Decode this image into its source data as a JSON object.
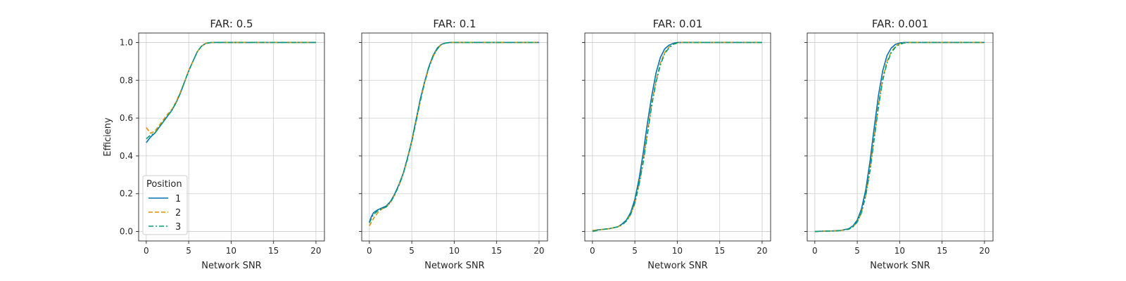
{
  "chart_data": [
    {
      "type": "line",
      "title": "FAR: 0.5",
      "xlabel": "Network SNR",
      "ylabel": "Efficieny",
      "xlim": [
        -0.9,
        21.0
      ],
      "ylim": [
        -0.05,
        1.05
      ],
      "xticks": [
        0,
        5,
        10,
        15,
        20
      ],
      "yticks": [
        0.0,
        0.2,
        0.4,
        0.6,
        0.8,
        1.0
      ],
      "ytick_labels_shown": true,
      "grid": true,
      "legend": "lower-left",
      "x": [
        0,
        0.5,
        1,
        1.5,
        2,
        2.5,
        3,
        3.5,
        4,
        4.5,
        5,
        5.5,
        6,
        6.5,
        7,
        7.5,
        8,
        9,
        10,
        12,
        15,
        20
      ],
      "series": [
        {
          "name": "1",
          "values": [
            0.47,
            0.5,
            0.52,
            0.55,
            0.58,
            0.61,
            0.64,
            0.68,
            0.73,
            0.79,
            0.85,
            0.9,
            0.95,
            0.98,
            0.995,
            0.999,
            1.0,
            1.0,
            1.0,
            1.0,
            1.0,
            1.0
          ]
        },
        {
          "name": "2",
          "values": [
            0.55,
            0.52,
            0.53,
            0.56,
            0.59,
            0.62,
            0.645,
            0.685,
            0.735,
            0.79,
            0.85,
            0.9,
            0.95,
            0.98,
            0.995,
            0.999,
            1.0,
            1.0,
            1.0,
            1.0,
            1.0,
            1.0
          ]
        },
        {
          "name": "3",
          "values": [
            0.49,
            0.51,
            0.52,
            0.55,
            0.58,
            0.61,
            0.64,
            0.68,
            0.73,
            0.79,
            0.85,
            0.9,
            0.95,
            0.98,
            0.995,
            0.999,
            1.0,
            1.0,
            1.0,
            1.0,
            1.0,
            1.0
          ]
        }
      ]
    },
    {
      "type": "line",
      "title": "FAR: 0.1",
      "xlabel": "Network SNR",
      "ylabel": "",
      "xlim": [
        -0.9,
        21.0
      ],
      "ylim": [
        -0.05,
        1.05
      ],
      "xticks": [
        0,
        5,
        10,
        15,
        20
      ],
      "yticks": [
        0.0,
        0.2,
        0.4,
        0.6,
        0.8,
        1.0
      ],
      "ytick_labels_shown": false,
      "grid": true,
      "legend": "",
      "x": [
        0,
        0.25,
        0.5,
        1,
        1.5,
        2,
        2.5,
        3,
        3.5,
        4,
        4.5,
        5,
        5.5,
        6,
        6.5,
        7,
        7.5,
        8,
        8.5,
        9,
        9.5,
        10,
        12,
        15,
        20
      ],
      "series": [
        {
          "name": "1",
          "values": [
            0.05,
            0.08,
            0.1,
            0.115,
            0.125,
            0.135,
            0.16,
            0.2,
            0.25,
            0.31,
            0.39,
            0.48,
            0.59,
            0.7,
            0.79,
            0.87,
            0.93,
            0.97,
            0.99,
            0.997,
            1.0,
            1.0,
            1.0,
            1.0,
            1.0
          ]
        },
        {
          "name": "2",
          "values": [
            0.03,
            0.05,
            0.07,
            0.1,
            0.12,
            0.13,
            0.155,
            0.195,
            0.245,
            0.305,
            0.385,
            0.475,
            0.58,
            0.69,
            0.785,
            0.865,
            0.925,
            0.965,
            0.99,
            0.997,
            1.0,
            1.0,
            1.0,
            1.0,
            1.0
          ]
        },
        {
          "name": "3",
          "values": [
            0.045,
            0.07,
            0.09,
            0.11,
            0.12,
            0.13,
            0.155,
            0.195,
            0.245,
            0.305,
            0.385,
            0.475,
            0.58,
            0.69,
            0.785,
            0.865,
            0.925,
            0.965,
            0.99,
            0.997,
            1.0,
            1.0,
            1.0,
            1.0,
            1.0
          ]
        }
      ]
    },
    {
      "type": "line",
      "title": "FAR: 0.01",
      "xlabel": "Network SNR",
      "ylabel": "",
      "xlim": [
        -0.9,
        21.0
      ],
      "ylim": [
        -0.05,
        1.05
      ],
      "xticks": [
        0,
        5,
        10,
        15,
        20
      ],
      "yticks": [
        0.0,
        0.2,
        0.4,
        0.6,
        0.8,
        1.0
      ],
      "ytick_labels_shown": false,
      "grid": true,
      "legend": "",
      "x": [
        0,
        1,
        2,
        3,
        3.5,
        4,
        4.5,
        5,
        5.5,
        6,
        6.5,
        7,
        7.5,
        8,
        8.5,
        9,
        9.5,
        10,
        10.5,
        11,
        12,
        15,
        20
      ],
      "series": [
        {
          "name": "1",
          "values": [
            0.005,
            0.01,
            0.015,
            0.025,
            0.04,
            0.06,
            0.1,
            0.17,
            0.28,
            0.42,
            0.58,
            0.72,
            0.84,
            0.92,
            0.965,
            0.985,
            0.995,
            1.0,
            1.0,
            1.0,
            1.0,
            1.0,
            1.0
          ]
        },
        {
          "name": "2",
          "values": [
            0.005,
            0.01,
            0.015,
            0.025,
            0.035,
            0.055,
            0.09,
            0.15,
            0.25,
            0.38,
            0.53,
            0.68,
            0.8,
            0.89,
            0.945,
            0.975,
            0.99,
            0.997,
            1.0,
            1.0,
            1.0,
            1.0,
            1.0
          ]
        },
        {
          "name": "3",
          "values": [
            0.0,
            0.01,
            0.015,
            0.025,
            0.035,
            0.055,
            0.09,
            0.15,
            0.25,
            0.37,
            0.52,
            0.67,
            0.79,
            0.88,
            0.94,
            0.97,
            0.99,
            0.997,
            1.0,
            1.0,
            1.0,
            1.0,
            1.0
          ]
        }
      ]
    },
    {
      "type": "line",
      "title": "FAR: 0.001",
      "xlabel": "Network SNR",
      "ylabel": "",
      "xlim": [
        -0.9,
        21.0
      ],
      "ylim": [
        -0.05,
        1.05
      ],
      "xticks": [
        0,
        5,
        10,
        15,
        20
      ],
      "yticks": [
        0.0,
        0.2,
        0.4,
        0.6,
        0.8,
        1.0
      ],
      "ytick_labels_shown": false,
      "grid": true,
      "legend": "",
      "x": [
        0,
        1,
        2,
        3,
        4,
        4.5,
        5,
        5.5,
        6,
        6.5,
        7,
        7.5,
        8,
        8.5,
        9,
        9.5,
        10,
        10.5,
        11,
        12,
        15,
        20
      ],
      "series": [
        {
          "name": "1",
          "values": [
            0.0,
            0.002,
            0.003,
            0.005,
            0.015,
            0.03,
            0.06,
            0.12,
            0.22,
            0.37,
            0.55,
            0.72,
            0.85,
            0.93,
            0.97,
            0.99,
            0.997,
            1.0,
            1.0,
            1.0,
            1.0,
            1.0
          ]
        },
        {
          "name": "2",
          "values": [
            0.0,
            0.002,
            0.003,
            0.005,
            0.012,
            0.025,
            0.05,
            0.1,
            0.19,
            0.33,
            0.5,
            0.67,
            0.81,
            0.9,
            0.95,
            0.98,
            0.993,
            0.998,
            1.0,
            1.0,
            1.0,
            1.0
          ]
        },
        {
          "name": "3",
          "values": [
            0.0,
            0.002,
            0.003,
            0.005,
            0.012,
            0.025,
            0.05,
            0.1,
            0.19,
            0.32,
            0.49,
            0.66,
            0.8,
            0.89,
            0.945,
            0.975,
            0.99,
            0.997,
            1.0,
            1.0,
            1.0,
            1.0
          ]
        }
      ]
    }
  ],
  "legend": {
    "title": "Position",
    "entries": [
      {
        "label": "1",
        "color": "#0173b2",
        "style": "solid"
      },
      {
        "label": "2",
        "color": "#de8f05",
        "style": "dashed"
      },
      {
        "label": "3",
        "color": "#029e73",
        "style": "dashdot"
      }
    ]
  },
  "colors": {
    "series_1": "#0173b2",
    "series_2": "#de8f05",
    "series_3": "#029e73",
    "grid": "#cccccc",
    "axes": "#262626"
  }
}
